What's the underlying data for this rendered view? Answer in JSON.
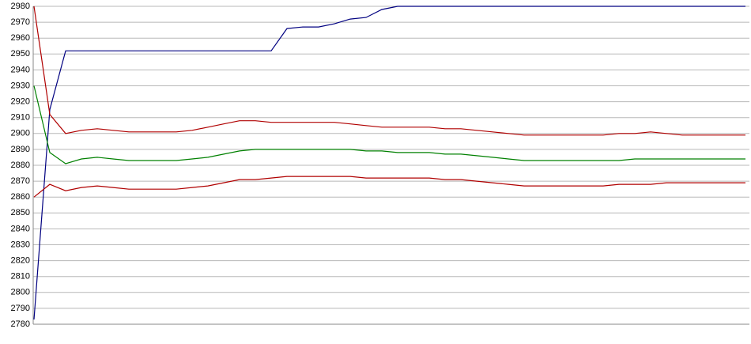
{
  "chart_data": {
    "type": "line",
    "categories": [
      null,
      null,
      null,
      null,
      null,
      null,
      null,
      null,
      null,
      null,
      null,
      null,
      null,
      null,
      null,
      null,
      null,
      null,
      null,
      null,
      null,
      null,
      null,
      null,
      null,
      null,
      null,
      null,
      null,
      null,
      null,
      null,
      null,
      null,
      null,
      null,
      null,
      null,
      null,
      null,
      null,
      null,
      null,
      null,
      null,
      null
    ],
    "series": [
      {
        "color": "#000080",
        "values": [
          2783,
          2915,
          2952,
          2952,
          2952,
          2952,
          2952,
          2952,
          2952,
          2952,
          2952,
          2952,
          2952,
          2952,
          2952,
          2952,
          2966,
          2967,
          2967,
          2969,
          2972,
          2973,
          2978,
          2980,
          2980,
          2980,
          2980,
          2980,
          2980,
          2980,
          2980,
          2980,
          2980,
          2980,
          2980,
          2980,
          2980,
          2980,
          2980,
          2980,
          2980,
          2980,
          2980,
          2980,
          2980,
          2980
        ]
      },
      {
        "color": "#b00000",
        "values": [
          2980,
          2912,
          2900,
          2902,
          2903,
          2902,
          2901,
          2901,
          2901,
          2901,
          2902,
          2904,
          2906,
          2908,
          2908,
          2907,
          2907,
          2907,
          2907,
          2907,
          2906,
          2905,
          2904,
          2904,
          2904,
          2904,
          2903,
          2903,
          2902,
          2901,
          2900,
          2899,
          2899,
          2899,
          2899,
          2899,
          2899,
          2900,
          2900,
          2901,
          2900,
          2899,
          2899,
          2899,
          2899,
          2899
        ]
      },
      {
        "color": "#008000",
        "values": [
          2930,
          2888,
          2881,
          2884,
          2885,
          2884,
          2883,
          2883,
          2883,
          2883,
          2884,
          2885,
          2887,
          2889,
          2890,
          2890,
          2890,
          2890,
          2890,
          2890,
          2890,
          2889,
          2889,
          2888,
          2888,
          2888,
          2887,
          2887,
          2886,
          2885,
          2884,
          2883,
          2883,
          2883,
          2883,
          2883,
          2883,
          2883,
          2884,
          2884,
          2884,
          2884,
          2884,
          2884,
          2884,
          2884
        ]
      },
      {
        "color": "#b00000",
        "values": [
          2860,
          2868,
          2864,
          2866,
          2867,
          2866,
          2865,
          2865,
          2865,
          2865,
          2866,
          2867,
          2869,
          2871,
          2871,
          2872,
          2873,
          2873,
          2873,
          2873,
          2873,
          2872,
          2872,
          2872,
          2872,
          2872,
          2871,
          2871,
          2870,
          2869,
          2868,
          2867,
          2867,
          2867,
          2867,
          2867,
          2867,
          2868,
          2868,
          2868,
          2869,
          2869,
          2869,
          2869,
          2869,
          2869
        ]
      }
    ],
    "ylim": [
      2780,
      2980
    ],
    "yticks": [
      2780,
      2790,
      2800,
      2810,
      2820,
      2830,
      2840,
      2850,
      2860,
      2870,
      2880,
      2890,
      2900,
      2910,
      2920,
      2930,
      2940,
      2950,
      2960,
      2970,
      2980
    ],
    "grid": true
  }
}
